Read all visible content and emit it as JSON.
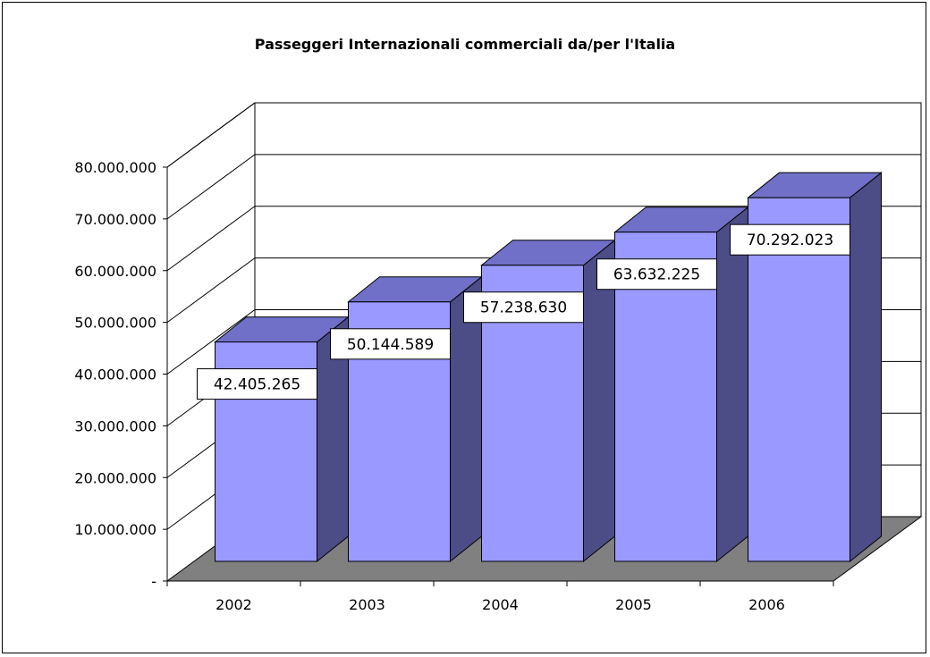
{
  "chart_data": {
    "type": "bar",
    "title": "Passeggeri Internazionali commerciali da/per l'Italia",
    "categories": [
      "2002",
      "2003",
      "2004",
      "2005",
      "2006"
    ],
    "values": [
      42405265,
      50144589,
      57238630,
      63632225,
      70292023
    ],
    "data_labels": [
      "42.405.265",
      "50.144.589",
      "57.238.630",
      "63.632.225",
      "70.292.023"
    ],
    "y_ticks": [
      {
        "value": 0,
        "label": "-"
      },
      {
        "value": 10000000,
        "label": "10.000.000"
      },
      {
        "value": 20000000,
        "label": "20.000.000"
      },
      {
        "value": 30000000,
        "label": "30.000.000"
      },
      {
        "value": 40000000,
        "label": "40.000.000"
      },
      {
        "value": 50000000,
        "label": "50.000.000"
      },
      {
        "value": 60000000,
        "label": "60.000.000"
      },
      {
        "value": 70000000,
        "label": "70.000.000"
      },
      {
        "value": 80000000,
        "label": "80.000.000"
      }
    ],
    "ylim": [
      0,
      80000000
    ],
    "grid": true,
    "three_d": true,
    "colors": {
      "bar_front": "#9999ff",
      "bar_top": "#7070c8",
      "bar_side": "#4c4c86",
      "floor": "#808080",
      "label_box": "#ffffff"
    }
  }
}
